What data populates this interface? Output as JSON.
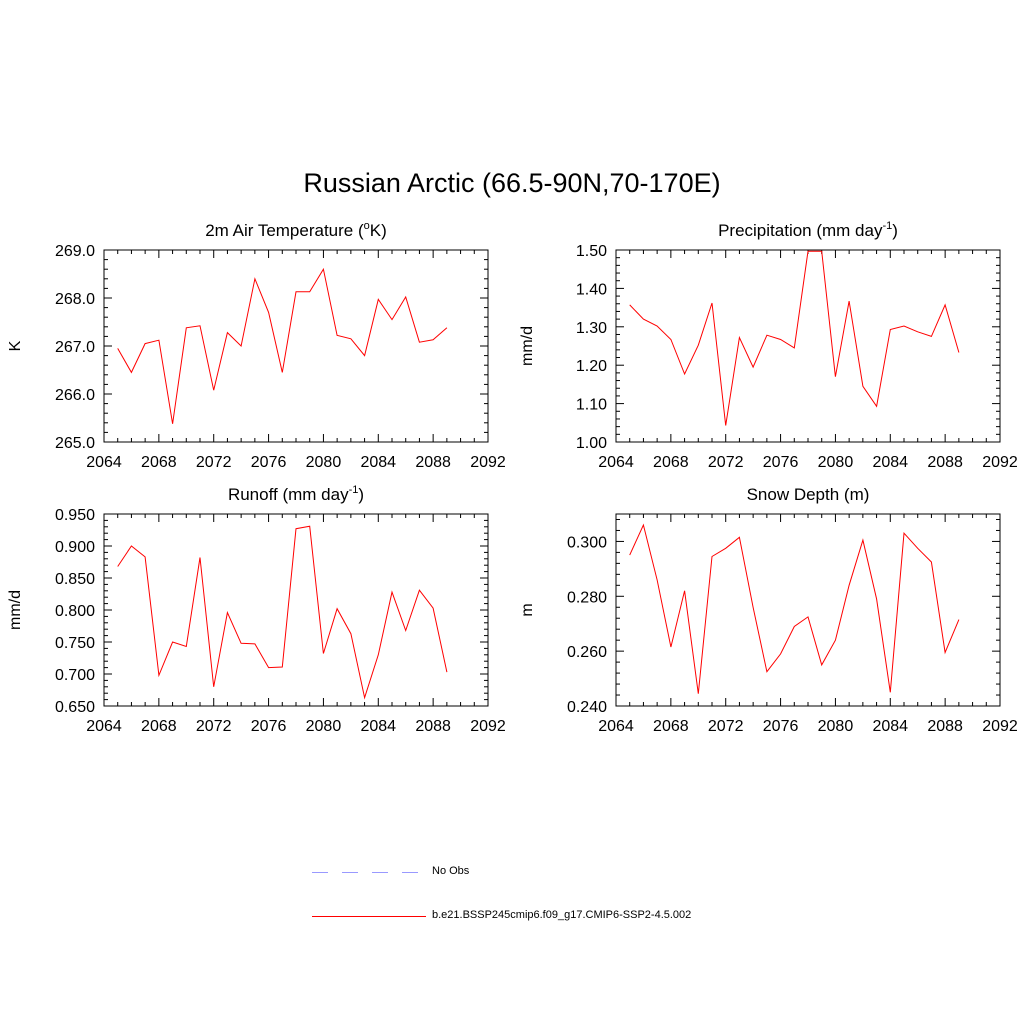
{
  "title": "Russian Arctic (66.5-90N,70-170E)",
  "colors": {
    "model_line": "#ff0000",
    "obs_line": "#9999ff",
    "axis": "#000000"
  },
  "legend": [
    {
      "label": "No Obs",
      "color": "#9999ff",
      "style": "dashed"
    },
    {
      "label": "b.e21.BSSP245cmip6.f09_g17.CMIP6-SSP2-4.5.002",
      "color": "#ff0000",
      "style": "solid"
    }
  ],
  "chart_data": [
    {
      "type": "line",
      "title": "2m Air Temperature (",
      "title_sup": "o",
      "title_after": "K)",
      "title_post_sup": "",
      "ylabel": "K",
      "xlim": [
        2064,
        2092
      ],
      "x_ticks": [
        "2064",
        "2068",
        "2072",
        "2076",
        "2080",
        "2084",
        "2088",
        "2092"
      ],
      "ylim": [
        265.0,
        269.0
      ],
      "y_ticks": [
        "265.0",
        "266.0",
        "267.0",
        "268.0",
        "269.0"
      ],
      "x": [
        2065,
        2066,
        2067,
        2068,
        2069,
        2070,
        2071,
        2072,
        2073,
        2074,
        2075,
        2076,
        2077,
        2078,
        2079,
        2080,
        2081,
        2082,
        2083,
        2084,
        2085,
        2086,
        2087,
        2088,
        2089
      ],
      "values": [
        266.95,
        266.45,
        267.05,
        267.12,
        265.38,
        267.38,
        267.42,
        266.08,
        267.28,
        267.0,
        268.4,
        267.7,
        266.45,
        268.13,
        268.13,
        268.6,
        267.22,
        267.15,
        266.8,
        267.97,
        267.55,
        268.02,
        267.08,
        267.13,
        267.38
      ]
    },
    {
      "type": "line",
      "title": "Precipitation (mm day",
      "title_sup": "-1",
      "title_after": ")",
      "title_post_sup": "",
      "ylabel": "mm/d",
      "xlim": [
        2064,
        2092
      ],
      "x_ticks": [
        "2064",
        "2068",
        "2072",
        "2076",
        "2080",
        "2084",
        "2088",
        "2092"
      ],
      "ylim": [
        1.0,
        1.5
      ],
      "y_ticks": [
        "1.00",
        "1.10",
        "1.20",
        "1.30",
        "1.40",
        "1.50"
      ],
      "x": [
        2065,
        2066,
        2067,
        2068,
        2069,
        2070,
        2071,
        2072,
        2073,
        2074,
        2075,
        2076,
        2077,
        2078,
        2079,
        2080,
        2081,
        2082,
        2083,
        2084,
        2085,
        2086,
        2087,
        2088,
        2089
      ],
      "values": [
        1.357,
        1.32,
        1.302,
        1.267,
        1.177,
        1.252,
        1.362,
        1.043,
        1.272,
        1.195,
        1.278,
        1.267,
        1.245,
        1.497,
        1.497,
        1.17,
        1.367,
        1.145,
        1.093,
        1.293,
        1.302,
        1.287,
        1.275,
        1.357,
        1.233
      ]
    },
    {
      "type": "line",
      "title": "Runoff (mm day",
      "title_sup": "-1",
      "title_after": ")",
      "title_post_sup": "",
      "ylabel": "mm/d",
      "xlim": [
        2064,
        2092
      ],
      "x_ticks": [
        "2064",
        "2068",
        "2072",
        "2076",
        "2080",
        "2084",
        "2088",
        "2092"
      ],
      "ylim": [
        0.65,
        0.95
      ],
      "y_ticks": [
        "0.650",
        "0.700",
        "0.750",
        "0.800",
        "0.850",
        "0.900",
        "0.950"
      ],
      "x": [
        2065,
        2066,
        2067,
        2068,
        2069,
        2070,
        2071,
        2072,
        2073,
        2074,
        2075,
        2076,
        2077,
        2078,
        2079,
        2080,
        2081,
        2082,
        2083,
        2084,
        2085,
        2086,
        2087,
        2088,
        2089
      ],
      "values": [
        0.868,
        0.9,
        0.883,
        0.698,
        0.75,
        0.743,
        0.882,
        0.68,
        0.796,
        0.748,
        0.747,
        0.71,
        0.711,
        0.927,
        0.931,
        0.732,
        0.802,
        0.763,
        0.663,
        0.73,
        0.828,
        0.768,
        0.831,
        0.803,
        0.703
      ]
    },
    {
      "type": "line",
      "title": "Snow Depth (m)",
      "title_sup": "",
      "title_after": "",
      "title_post_sup": "",
      "ylabel": "m",
      "xlim": [
        2064,
        2092
      ],
      "x_ticks": [
        "2064",
        "2068",
        "2072",
        "2076",
        "2080",
        "2084",
        "2088",
        "2092"
      ],
      "ylim": [
        0.24,
        0.31
      ],
      "y_ticks": [
        "0.240",
        "0.260",
        "0.280",
        "0.300"
      ],
      "x": [
        2065,
        2066,
        2067,
        2068,
        2069,
        2070,
        2071,
        2072,
        2073,
        2074,
        2075,
        2076,
        2077,
        2078,
        2079,
        2080,
        2081,
        2082,
        2083,
        2084,
        2085,
        2086,
        2087,
        2088,
        2089
      ],
      "values": [
        0.295,
        0.306,
        0.286,
        0.2615,
        0.282,
        0.2445,
        0.2945,
        0.2975,
        0.3015,
        0.276,
        0.2525,
        0.259,
        0.269,
        0.2725,
        0.255,
        0.264,
        0.284,
        0.3005,
        0.279,
        0.245,
        0.303,
        0.2975,
        0.2925,
        0.2595,
        0.2715
      ]
    }
  ]
}
